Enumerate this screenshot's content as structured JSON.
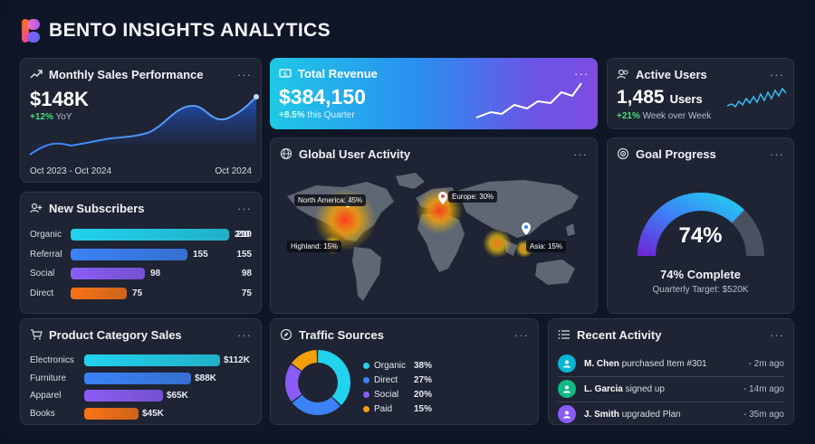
{
  "app": {
    "title": "BENTO INSIGHTS ANALYTICS"
  },
  "colors": {
    "bg": "#0f1727",
    "card": "#1e2433",
    "accent_teal": "#22d3ee",
    "accent_purple": "#8b5cf6",
    "positive": "#4ade80"
  },
  "monthly_sales": {
    "title": "Monthly Sales Performance",
    "icon": "trending-up-icon",
    "value": "$148K",
    "change": "+12%",
    "change_label": "YoY",
    "range_start": "Oct 2023 - Oct 2024",
    "range_end": "Oct 2024"
  },
  "total_revenue": {
    "title": "Total Revenue",
    "icon": "dollar-icon",
    "value": "$384,150",
    "change": "+8.5%",
    "change_label": "this Quarter"
  },
  "active_users": {
    "title": "Active Users",
    "icon": "users-icon",
    "value": "1,485",
    "unit": "Users",
    "change": "+21%",
    "change_label": "Week over Week"
  },
  "subscribers": {
    "title": "New Subscribers",
    "icon": "user-plus-icon",
    "rows": [
      {
        "label": "Organic",
        "bar_label": "210",
        "value": "210",
        "fraction": 1.0,
        "color": "#22d3ee"
      },
      {
        "label": "Referral",
        "bar_label": "155",
        "value": "155",
        "fraction": 0.738,
        "color": "#3b82f6"
      },
      {
        "label": "Social",
        "bar_label": "98",
        "value": "98",
        "fraction": 0.467,
        "color": "#8b5cf6"
      },
      {
        "label": "Direct",
        "bar_label": "75",
        "value": "75",
        "fraction": 0.357,
        "color": "#f97316"
      }
    ]
  },
  "global_activity": {
    "title": "Global User Activity",
    "icon": "globe-icon",
    "pins": [
      "North America: 45%",
      "Europe: 30%",
      "Highland: 15%",
      "Asia: 15%"
    ]
  },
  "goal": {
    "title": "Goal Progress",
    "icon": "target-icon",
    "percent": "74%",
    "fraction": 0.74,
    "complete": "74% Complete",
    "target": "Quarterly Target: $520K"
  },
  "product_sales": {
    "title": "Product Category Sales",
    "icon": "cart-icon",
    "rows": [
      {
        "label": "Electronics",
        "value": "$112K",
        "fraction": 1.0,
        "color": "#22d3ee"
      },
      {
        "label": "Furniture",
        "value": "$88K",
        "fraction": 0.786,
        "color": "#3b82f6"
      },
      {
        "label": "Apparel",
        "value": "$65K",
        "fraction": 0.58,
        "color": "#8b5cf6"
      },
      {
        "label": "Books",
        "value": "$45K",
        "fraction": 0.402,
        "color": "#f97316"
      }
    ]
  },
  "traffic": {
    "title": "Traffic Sources",
    "icon": "compass-icon",
    "rows": [
      {
        "label": "Organic",
        "value": "38%",
        "fraction": 0.38,
        "color": "#22d3ee"
      },
      {
        "label": "Direct",
        "value": "27%",
        "fraction": 0.27,
        "color": "#3b82f6"
      },
      {
        "label": "Social",
        "value": "20%",
        "fraction": 0.2,
        "color": "#8b5cf6"
      },
      {
        "label": "Paid",
        "value": "15%",
        "fraction": 0.15,
        "color": "#f59e0b"
      }
    ]
  },
  "activity": {
    "title": "Recent Activity",
    "icon": "list-icon",
    "items": [
      {
        "name": "M. Chen",
        "action": "purchased Item #301",
        "time": "- 2m ago",
        "color": "#06b6d4",
        "icon": "user-icon"
      },
      {
        "name": "L. Garcia",
        "action": "signed up",
        "time": "- 14m ago",
        "color": "#10b981",
        "icon": "user-plus-icon"
      },
      {
        "name": "J. Smith",
        "action": "upgraded Plan",
        "time": "- 35m ago",
        "color": "#8b5cf6",
        "icon": "user-upgrade-icon"
      }
    ]
  },
  "menu_label": "···"
}
